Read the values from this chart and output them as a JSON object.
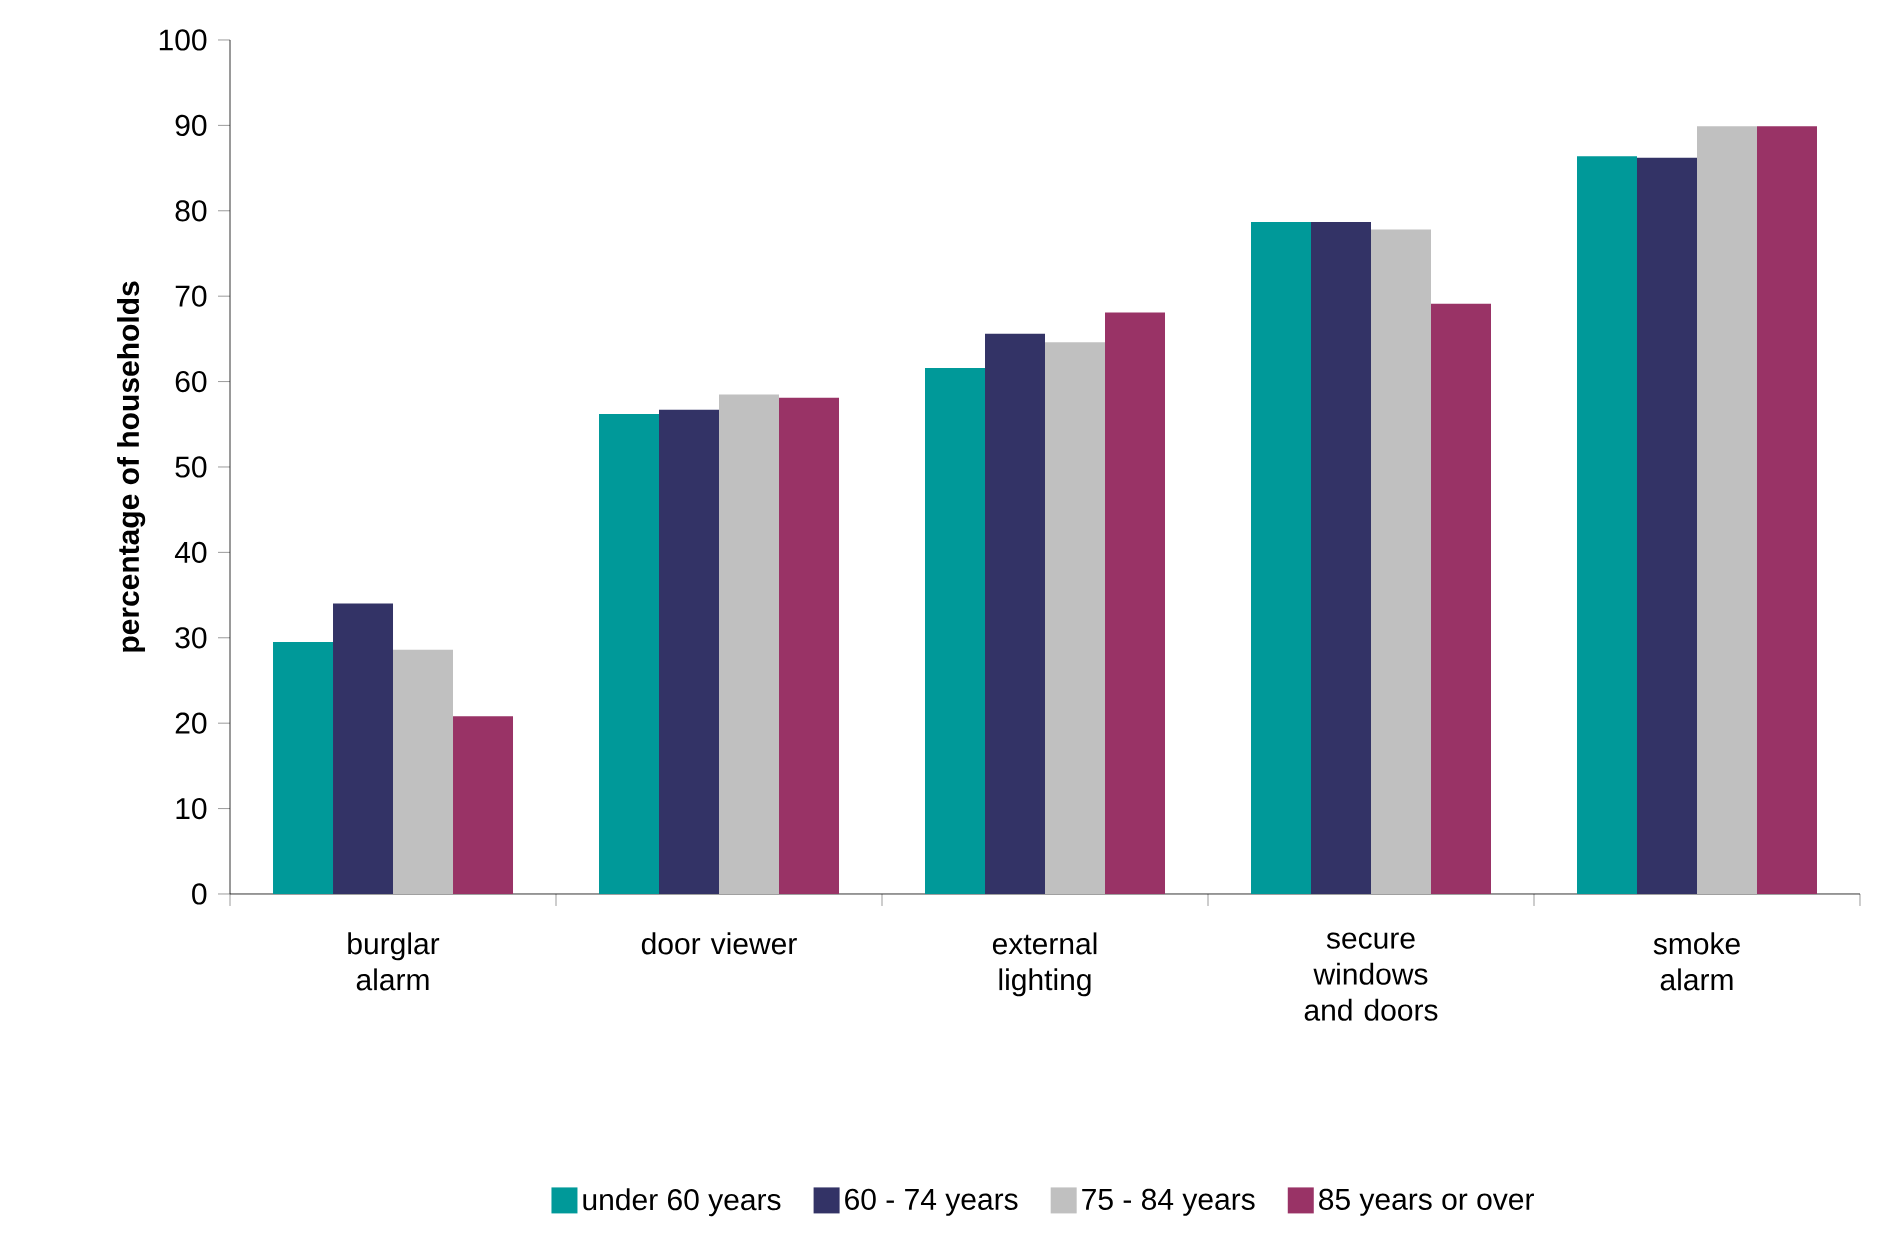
{
  "chart_data": {
    "type": "bar",
    "ylabel": "percentage of households",
    "categories": [
      "burglar alarm",
      "door viewer",
      "external lighting",
      "secure windows and doors",
      "smoke alarm"
    ],
    "series": [
      {
        "name": "under 60 years",
        "color": "#009999",
        "values": [
          29.5,
          56.2,
          61.6,
          78.7,
          86.4
        ]
      },
      {
        "name": "60 - 74 years",
        "color": "#333366",
        "values": [
          34.0,
          56.7,
          65.6,
          78.7,
          86.2
        ]
      },
      {
        "name": "75 - 84 years",
        "color": "#c0c0c0",
        "values": [
          28.6,
          58.5,
          64.6,
          77.8,
          89.9
        ]
      },
      {
        "name": "85 years or over",
        "color": "#993366",
        "values": [
          20.8,
          58.1,
          68.1,
          69.1,
          89.9
        ]
      }
    ],
    "ylim": [
      0,
      100
    ],
    "yticks": [
      0,
      10,
      20,
      30,
      40,
      50,
      60,
      70,
      80,
      90,
      100
    ],
    "grid": false,
    "legend": "bottom"
  }
}
